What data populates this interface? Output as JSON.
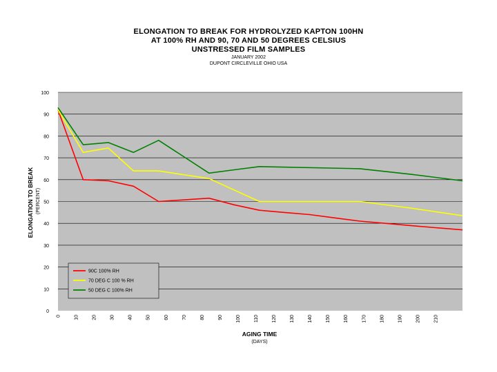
{
  "chart_data": {
    "type": "line",
    "title": "ELONGATION TO BREAK FOR HYDROLYZED KAPTON 100HN",
    "subtitle_lines": [
      "AT 100% RH AND 90, 70 AND 50 DEGREES CELSIUS",
      "UNSTRESSED FILM SAMPLES"
    ],
    "notes": [
      "JANUARY 2002",
      "DUPONT CIRCLEVILLE OHIO USA"
    ],
    "ylabel": "ELONGATION TO BREAK",
    "ylabel_sub": "(PERCENT)",
    "xlabel": "AGING TIME",
    "xlabel_sub": "(DAYS)",
    "ylim": [
      0,
      100
    ],
    "xlim": [
      0,
      225
    ],
    "y_ticks": [
      0,
      10,
      20,
      30,
      40,
      50,
      60,
      70,
      80,
      90,
      100
    ],
    "x_ticks": [
      0,
      10,
      20,
      30,
      40,
      50,
      60,
      70,
      80,
      90,
      100,
      110,
      120,
      130,
      140,
      150,
      160,
      170,
      180,
      190,
      200,
      210
    ],
    "grid": "horizontal",
    "legend_position": "bottom-left",
    "series": [
      {
        "name": "90C 100% RH",
        "color": "#ff0000",
        "x": [
          0,
          14,
          28,
          42,
          56,
          84,
          98,
          112,
          126,
          140,
          154,
          168,
          182,
          196,
          210,
          225
        ],
        "y": [
          92,
          60,
          59.5,
          57,
          50,
          51.5,
          48.5,
          46,
          45,
          44,
          42.5,
          41,
          40,
          39,
          38,
          37
        ]
      },
      {
        "name": "70 DEG C 100 % RH",
        "color": "#ffff00",
        "x": [
          0,
          14,
          28,
          42,
          56,
          84,
          112,
          168,
          196,
          225
        ],
        "y": [
          92,
          72.5,
          74.5,
          64,
          64,
          60.5,
          50,
          50,
          47,
          43.5
        ]
      },
      {
        "name": "50 DEG C 100% RH",
        "color": "#008000",
        "x": [
          0,
          14,
          28,
          42,
          56,
          84,
          98,
          112,
          168,
          196,
          225
        ],
        "y": [
          93,
          76,
          77,
          72.5,
          78,
          63,
          64.5,
          66,
          65,
          62.5,
          59.5
        ]
      }
    ]
  }
}
